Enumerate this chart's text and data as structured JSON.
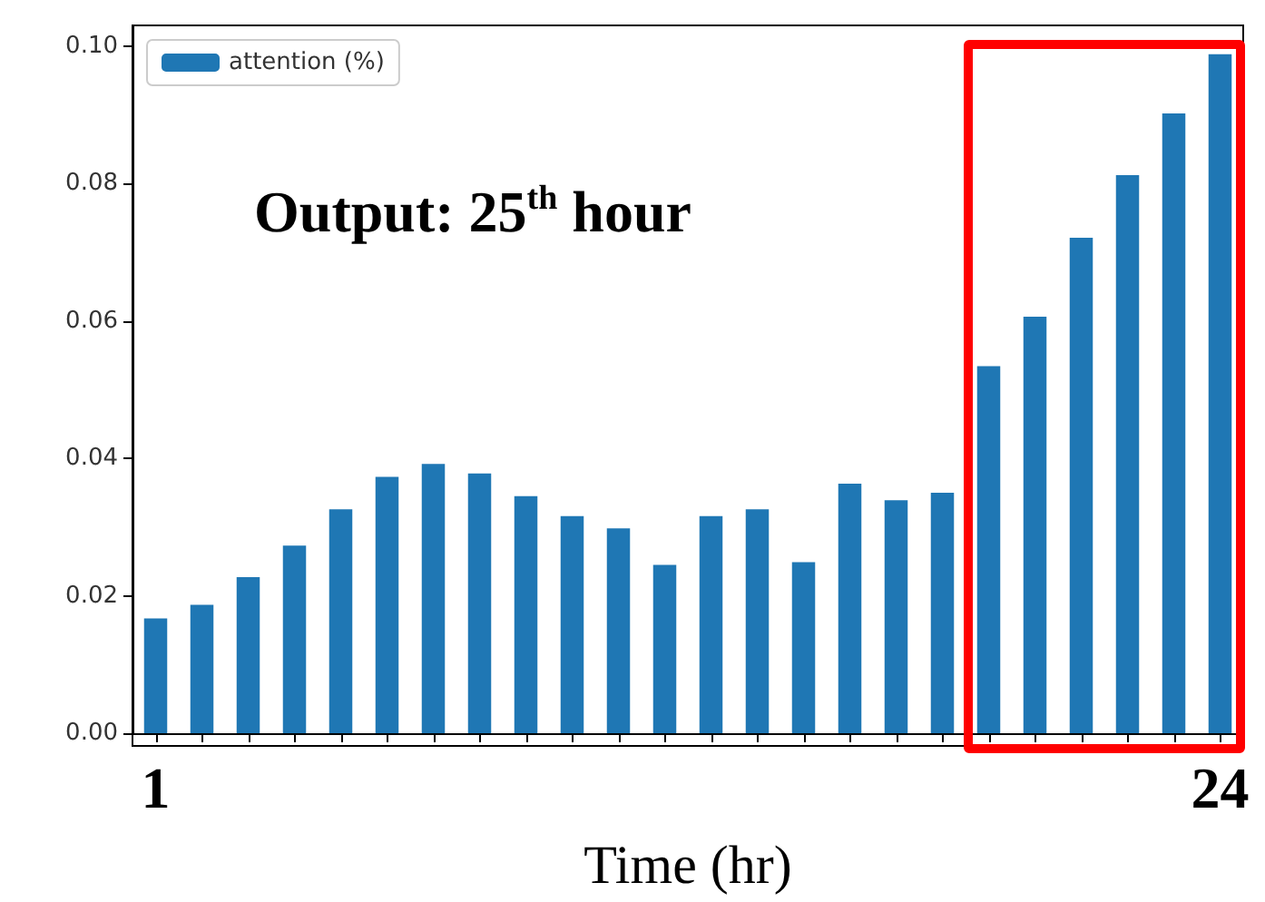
{
  "chart_data": {
    "type": "bar",
    "categories": [
      "1",
      null,
      null,
      null,
      null,
      null,
      null,
      null,
      null,
      null,
      null,
      null,
      null,
      null,
      null,
      null,
      null,
      null,
      null,
      null,
      null,
      null,
      null,
      "24"
    ],
    "series": [
      {
        "name": "attention (%)",
        "color": "#1f77b4",
        "values": [
          0.0167,
          0.0187,
          0.0227,
          0.0273,
          0.0326,
          0.0373,
          0.0392,
          0.0378,
          0.0345,
          0.0316,
          0.0298,
          0.0245,
          0.0316,
          0.0326,
          0.0249,
          0.0363,
          0.0339,
          0.035,
          0.0534,
          0.0606,
          0.0721,
          0.0812,
          0.0902,
          0.0988
        ]
      }
    ],
    "xlabel": "Time (hr)",
    "ylim": [
      0,
      0.103
    ],
    "yticks": [
      {
        "value": 0,
        "label": "0.00"
      },
      {
        "value": 0.02,
        "label": "0.02"
      },
      {
        "value": 0.04,
        "label": "0.04"
      },
      {
        "value": 0.06,
        "label": "0.06"
      },
      {
        "value": 0.08,
        "label": "0.08"
      },
      {
        "value": 0.1,
        "label": "0.10"
      }
    ],
    "annotations": [
      "Output: 25$^{th}$ hour"
    ],
    "legend": "top left",
    "grid": false
  }
}
